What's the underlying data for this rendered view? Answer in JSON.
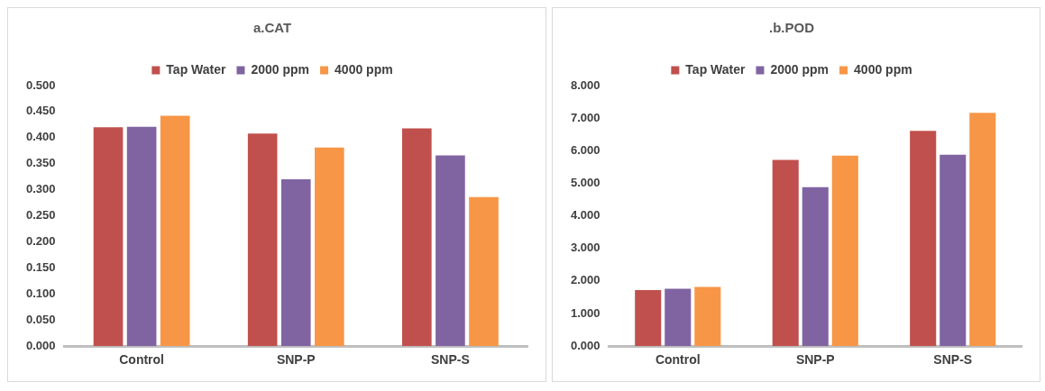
{
  "chart_data": [
    {
      "type": "bar",
      "title": "a.CAT",
      "categories": [
        "Control",
        "SNP-P",
        "SNP-S"
      ],
      "series": [
        {
          "name": "Tap Water",
          "color": "#c0504d",
          "values": [
            0.42,
            0.408,
            0.418
          ]
        },
        {
          "name": "2000 ppm",
          "color": "#8064a2",
          "values": [
            0.421,
            0.32,
            0.366
          ]
        },
        {
          "name": "4000 ppm",
          "color": "#f79646",
          "values": [
            0.442,
            0.381,
            0.286
          ]
        }
      ],
      "ylim": [
        0,
        0.5
      ],
      "yticks": [
        {
          "value": 0,
          "label": "0.000"
        },
        {
          "value": 0.05,
          "label": "0.050"
        },
        {
          "value": 0.1,
          "label": "0.100"
        },
        {
          "value": 0.15,
          "label": "0.150"
        },
        {
          "value": 0.2,
          "label": "0.200"
        },
        {
          "value": 0.25,
          "label": "0.250"
        },
        {
          "value": 0.3,
          "label": "0.300"
        },
        {
          "value": 0.35,
          "label": "0.350"
        },
        {
          "value": 0.4,
          "label": "0.400"
        },
        {
          "value": 0.45,
          "label": "0.450"
        },
        {
          "value": 0.5,
          "label": "0.500"
        }
      ],
      "grid": false,
      "legend": "top"
    },
    {
      "type": "bar",
      "title": ".b.POD",
      "categories": [
        "Control",
        "SNP-P",
        "SNP-S"
      ],
      "series": [
        {
          "name": "Tap Water",
          "color": "#c0504d",
          "values": [
            1.72,
            5.72,
            6.61
          ]
        },
        {
          "name": "2000 ppm",
          "color": "#8064a2",
          "values": [
            1.76,
            4.88,
            5.88
          ]
        },
        {
          "name": "4000 ppm",
          "color": "#f79646",
          "values": [
            1.82,
            5.85,
            7.16
          ]
        }
      ],
      "ylim": [
        0,
        8
      ],
      "yticks": [
        {
          "value": 0,
          "label": "0.000"
        },
        {
          "value": 1,
          "label": "1.000"
        },
        {
          "value": 2,
          "label": "2.000"
        },
        {
          "value": 3,
          "label": "3.000"
        },
        {
          "value": 4,
          "label": "4.000"
        },
        {
          "value": 5,
          "label": "5.000"
        },
        {
          "value": 6,
          "label": "6.000"
        },
        {
          "value": 7,
          "label": "7.000"
        },
        {
          "value": 8,
          "label": "8.000"
        }
      ],
      "grid": false,
      "legend": "top"
    }
  ]
}
